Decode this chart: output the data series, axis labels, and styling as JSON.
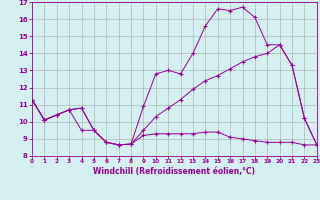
{
  "xlabel": "Windchill (Refroidissement éolien,°C)",
  "bg_color": "#d4f0f0",
  "line_color": "#990099",
  "grid_color": "#aaaaaa",
  "xlim": [
    0,
    23
  ],
  "ylim": [
    8,
    17
  ],
  "xticks": [
    0,
    1,
    2,
    3,
    4,
    5,
    6,
    7,
    8,
    9,
    10,
    11,
    12,
    13,
    14,
    15,
    16,
    17,
    18,
    19,
    20,
    21,
    22,
    23
  ],
  "yticks": [
    8,
    9,
    10,
    11,
    12,
    13,
    14,
    15,
    16,
    17
  ],
  "line1_x": [
    0,
    1,
    2,
    3,
    4,
    5,
    6,
    7,
    8,
    9,
    10,
    11,
    12,
    13,
    14,
    15,
    16,
    17,
    18,
    19,
    20,
    21,
    22,
    23
  ],
  "line1_y": [
    11.3,
    10.1,
    10.4,
    10.7,
    10.8,
    9.5,
    8.8,
    8.65,
    8.7,
    10.9,
    12.8,
    13.0,
    12.8,
    14.0,
    15.6,
    16.6,
    16.5,
    16.7,
    16.1,
    14.5,
    14.5,
    13.3,
    10.2,
    8.65
  ],
  "line2_x": [
    0,
    1,
    2,
    3,
    4,
    5,
    6,
    7,
    8,
    9,
    10,
    11,
    12,
    13,
    14,
    15,
    16,
    17,
    18,
    19,
    20,
    21,
    22,
    23
  ],
  "line2_y": [
    11.3,
    10.1,
    10.4,
    10.7,
    9.5,
    9.5,
    8.8,
    8.65,
    8.7,
    9.2,
    9.3,
    9.3,
    9.3,
    9.3,
    9.4,
    9.4,
    9.1,
    9.0,
    8.9,
    8.8,
    8.8,
    8.8,
    8.65,
    8.65
  ],
  "line3_x": [
    0,
    1,
    2,
    3,
    4,
    5,
    6,
    7,
    8,
    9,
    10,
    11,
    12,
    13,
    14,
    15,
    16,
    17,
    18,
    19,
    20,
    21,
    22,
    23
  ],
  "line3_y": [
    11.3,
    10.1,
    10.4,
    10.7,
    10.8,
    9.5,
    8.8,
    8.65,
    8.7,
    9.5,
    10.3,
    10.8,
    11.3,
    11.9,
    12.4,
    12.7,
    13.1,
    13.5,
    13.8,
    14.0,
    14.5,
    13.3,
    10.2,
    8.65
  ]
}
